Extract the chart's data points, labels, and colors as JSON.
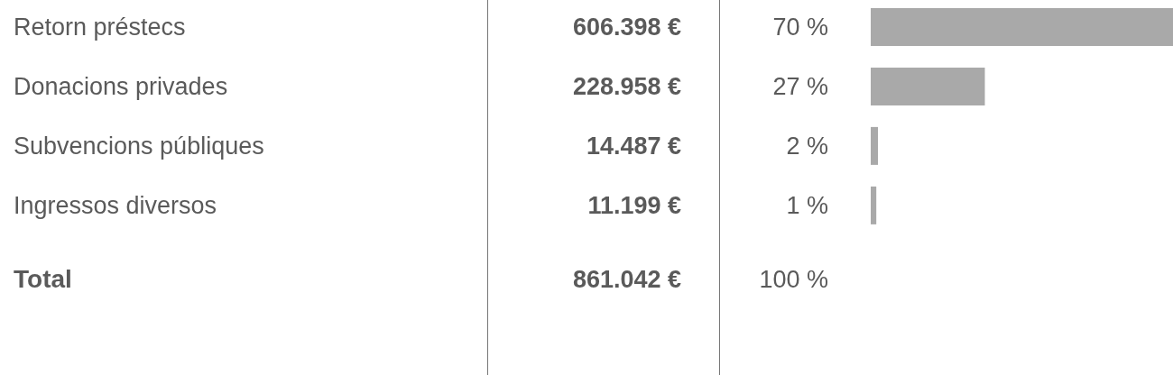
{
  "chart_data": {
    "type": "bar",
    "orientation": "horizontal",
    "categories": [
      "Retorn préstecs",
      "Donacions privades",
      "Subvencions públiques",
      "Ingressos diversos"
    ],
    "values": [
      606398,
      228958,
      14487,
      11199
    ],
    "value_labels": [
      "606.398 €",
      "228.958 €",
      "14.487 €",
      "11.199 €"
    ],
    "color": "#a9a9a9",
    "annotations": [
      "70 %",
      "27 %",
      "2 %",
      "1 %",
      "Total",
      "861.042 €",
      "100 %"
    ],
    "grid": false,
    "legend": false
  }
}
